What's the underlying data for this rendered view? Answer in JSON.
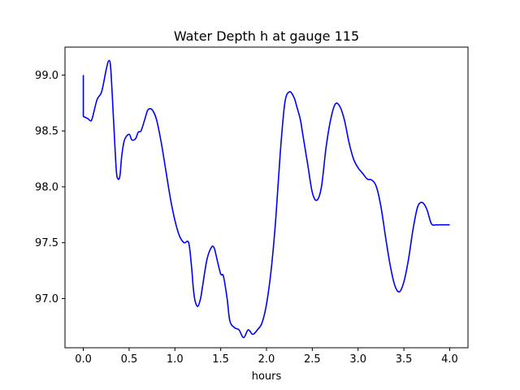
{
  "chart_data": {
    "type": "line",
    "title": "Water Depth h at gauge 115",
    "xlabel": "hours",
    "ylabel": "",
    "xlim": [
      -0.2,
      4.2
    ],
    "ylim": [
      96.56,
      99.25
    ],
    "xticks": [
      0.0,
      0.5,
      1.0,
      1.5,
      2.0,
      2.5,
      3.0,
      3.5,
      4.0
    ],
    "xtick_labels": [
      "0.0",
      "0.5",
      "1.0",
      "1.5",
      "2.0",
      "2.5",
      "3.0",
      "3.5",
      "4.0"
    ],
    "yticks": [
      97.0,
      97.5,
      98.0,
      98.5,
      99.0
    ],
    "ytick_labels": [
      "97.0",
      "97.5",
      "98.0",
      "98.5",
      "99.0"
    ],
    "grid": false,
    "legend": "none",
    "series": [
      {
        "color": "#0000ff",
        "x": [
          0.0,
          0.0,
          0.05,
          0.08,
          0.1,
          0.15,
          0.2,
          0.25,
          0.28,
          0.3,
          0.33,
          0.36,
          0.38,
          0.4,
          0.42,
          0.45,
          0.5,
          0.53,
          0.57,
          0.6,
          0.63,
          0.67,
          0.7,
          0.73,
          0.76,
          0.8,
          0.85,
          0.9,
          0.95,
          1.0,
          1.05,
          1.1,
          1.15,
          1.18,
          1.2,
          1.22,
          1.25,
          1.28,
          1.3,
          1.35,
          1.4,
          1.43,
          1.46,
          1.5,
          1.53,
          1.57,
          1.6,
          1.65,
          1.7,
          1.75,
          1.8,
          1.85,
          1.9,
          1.95,
          2.0,
          2.05,
          2.1,
          2.15,
          2.2,
          2.25,
          2.3,
          2.33,
          2.37,
          2.4,
          2.45,
          2.5,
          2.55,
          2.6,
          2.65,
          2.7,
          2.75,
          2.8,
          2.85,
          2.9,
          2.95,
          3.0,
          3.05,
          3.1,
          3.15,
          3.2,
          3.25,
          3.3,
          3.35,
          3.4,
          3.45,
          3.5,
          3.55,
          3.6,
          3.65,
          3.7,
          3.75,
          3.8,
          3.85,
          3.9,
          3.95,
          4.0
        ],
        "values": [
          99.0,
          98.63,
          98.61,
          98.59,
          98.62,
          98.78,
          98.85,
          99.05,
          99.13,
          99.05,
          98.6,
          98.15,
          98.07,
          98.1,
          98.28,
          98.42,
          98.47,
          98.42,
          98.43,
          98.49,
          98.5,
          98.6,
          98.68,
          98.7,
          98.68,
          98.6,
          98.4,
          98.15,
          97.9,
          97.7,
          97.56,
          97.5,
          97.5,
          97.3,
          97.1,
          96.98,
          96.93,
          97.0,
          97.1,
          97.35,
          97.46,
          97.45,
          97.35,
          97.22,
          97.2,
          97.0,
          96.8,
          96.74,
          96.72,
          96.65,
          96.72,
          96.68,
          96.72,
          96.78,
          96.95,
          97.25,
          97.7,
          98.3,
          98.75,
          98.85,
          98.8,
          98.72,
          98.6,
          98.45,
          98.2,
          97.95,
          97.88,
          98.0,
          98.35,
          98.6,
          98.74,
          98.72,
          98.6,
          98.4,
          98.25,
          98.17,
          98.12,
          98.07,
          98.06,
          98.0,
          97.82,
          97.55,
          97.3,
          97.12,
          97.06,
          97.15,
          97.35,
          97.62,
          97.82,
          97.86,
          97.8,
          97.67,
          97.66,
          97.66,
          97.66,
          97.66
        ]
      }
    ]
  }
}
